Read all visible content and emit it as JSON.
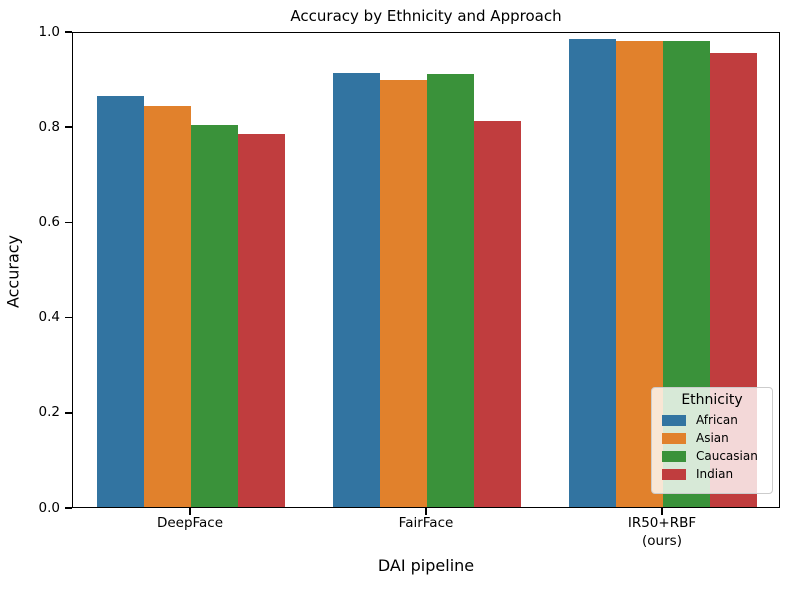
{
  "chart_data": {
    "type": "bar",
    "title": "Accuracy by Ethnicity and Approach",
    "xlabel": "DAI pipeline",
    "ylabel": "Accuracy",
    "categories": [
      {
        "label": "DeepFace",
        "label2": ""
      },
      {
        "label": "FairFace",
        "label2": ""
      },
      {
        "label": "IR50+RBF",
        "label2": "(ours)"
      }
    ],
    "series": [
      {
        "name": "African",
        "color": "#3274a1",
        "values": [
          0.864,
          0.912,
          0.983
        ]
      },
      {
        "name": "Asian",
        "color": "#e1812c",
        "values": [
          0.843,
          0.897,
          0.978
        ]
      },
      {
        "name": "Caucasian",
        "color": "#3a923a",
        "values": [
          0.803,
          0.909,
          0.978
        ]
      },
      {
        "name": "Indian",
        "color": "#c03d3e",
        "values": [
          0.783,
          0.812,
          0.953
        ]
      }
    ],
    "ylim": [
      0.0,
      1.0
    ],
    "yticks": [
      {
        "value": 0.0,
        "label": "0.0"
      },
      {
        "value": 0.2,
        "label": "0.2"
      },
      {
        "value": 0.4,
        "label": "0.4"
      },
      {
        "value": 0.6,
        "label": "0.6"
      },
      {
        "value": 0.8,
        "label": "0.8"
      },
      {
        "value": 1.0,
        "label": "1.0"
      }
    ],
    "legend": {
      "title": "Ethnicity",
      "position": "lower right"
    },
    "grid": false,
    "group_width_fraction": 0.8
  }
}
